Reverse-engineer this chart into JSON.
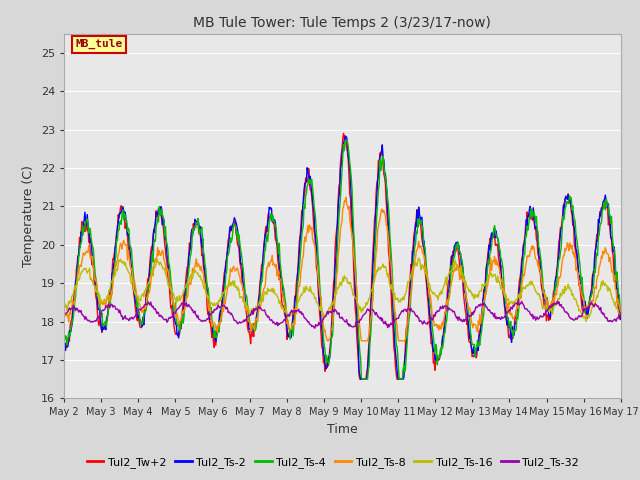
{
  "title": "MB Tule Tower: Tule Temps 2 (3/23/17-now)",
  "xlabel": "Time",
  "ylabel": "Temperature (C)",
  "ylim": [
    16.0,
    25.5
  ],
  "yticks": [
    16.0,
    17.0,
    18.0,
    19.0,
    20.0,
    21.0,
    22.0,
    23.0,
    24.0,
    25.0
  ],
  "x_labels": [
    "May 2",
    "May 3",
    "May 4",
    "May 5",
    "May 6",
    "May 7",
    "May 8",
    "May 9",
    "May 10",
    "May 11",
    "May 12",
    "May 13",
    "May 14",
    "May 15",
    "May 16",
    "May 17"
  ],
  "legend_labels": [
    "Tul2_Tw+2",
    "Tul2_Ts-2",
    "Tul2_Ts-4",
    "Tul2_Ts-8",
    "Tul2_Ts-16",
    "Tul2_Ts-32"
  ],
  "line_colors": [
    "#ff0000",
    "#0000ff",
    "#00bb00",
    "#ff8800",
    "#bbbb00",
    "#9900aa"
  ],
  "line_width": 1.0,
  "bg_color": "#d8d8d8",
  "plot_bg_color": "#e8e8e8",
  "legend_box_color": "#ffff99",
  "legend_box_edge": "#cc0000",
  "legend_text_color": "#990000",
  "grid_color": "#ffffff"
}
